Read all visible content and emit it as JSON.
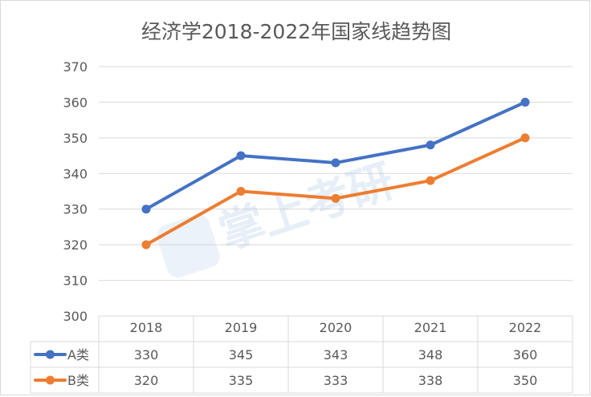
{
  "chart_data": {
    "type": "line",
    "title": "经济学2018-2022年国家线趋势图",
    "categories": [
      "2018",
      "2019",
      "2020",
      "2021",
      "2022"
    ],
    "series": [
      {
        "name": "A类",
        "values": [
          330,
          345,
          343,
          348,
          360
        ],
        "color": "#4472c4"
      },
      {
        "name": "B类",
        "values": [
          320,
          335,
          333,
          338,
          350
        ],
        "color": "#ed7d31"
      }
    ],
    "yticks": [
      300,
      310,
      320,
      330,
      340,
      350,
      360,
      370
    ],
    "ylim": [
      300,
      370
    ],
    "grid": true,
    "legend": "data-table"
  },
  "watermark": {
    "text": "掌上考研"
  }
}
